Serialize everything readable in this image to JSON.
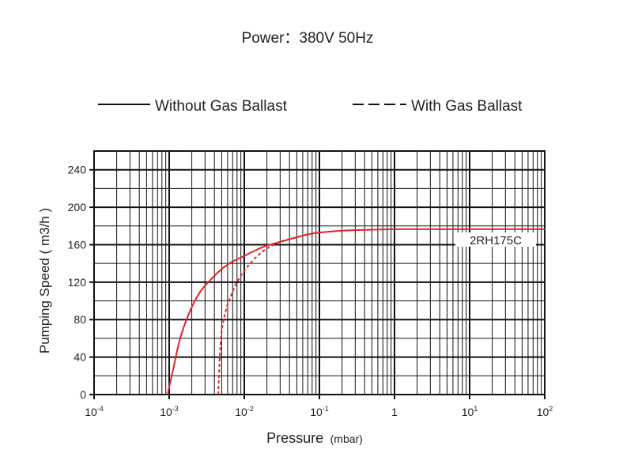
{
  "header": {
    "power_label": "Power：380V 50Hz"
  },
  "legend": {
    "solid_label": "Without Gas Ballast",
    "dashed_label": "With Gas Ballast"
  },
  "chart_data": {
    "type": "line",
    "title": "Power：380V 50Hz",
    "xlabel_main": "Pressure",
    "xlabel_unit": "(mbar)",
    "ylabel": "Pumping Speed ( m3/h )",
    "x_scale": "log",
    "xlim": [
      0.0001,
      100
    ],
    "ylim": [
      0,
      260
    ],
    "x_ticks": [
      {
        "value": 0.0001,
        "base": "10",
        "exp": "-4"
      },
      {
        "value": 0.001,
        "base": "10",
        "exp": "-3"
      },
      {
        "value": 0.01,
        "base": "10",
        "exp": "-2"
      },
      {
        "value": 0.1,
        "base": "10",
        "exp": "-1"
      },
      {
        "value": 1,
        "base": "1",
        "exp": ""
      },
      {
        "value": 10,
        "base": "10",
        "exp": "1"
      },
      {
        "value": 100,
        "base": "10",
        "exp": "2"
      }
    ],
    "y_ticks": [
      0,
      40,
      80,
      120,
      160,
      200,
      240
    ],
    "grid": true,
    "legend_position": "top",
    "curve_label": "2RH175C",
    "series": [
      {
        "name": "Without Gas Ballast",
        "style": "solid",
        "color": "#e0242c",
        "x": [
          0.00095,
          0.00115,
          0.0014,
          0.0018,
          0.0025,
          0.0035,
          0.005,
          0.007,
          0.01,
          0.015,
          0.02,
          0.03,
          0.05,
          0.07,
          0.1,
          0.2,
          0.5,
          1,
          2,
          5,
          10,
          100
        ],
        "y": [
          0,
          30,
          60,
          85,
          108,
          122,
          134,
          142,
          148,
          155,
          159,
          163,
          168,
          171,
          173,
          175,
          176,
          176.5,
          176.5,
          176.5,
          176.5,
          176.5
        ]
      },
      {
        "name": "With Gas Ballast",
        "style": "dashed",
        "color": "#e0242c",
        "x": [
          0.0045,
          0.0046,
          0.0048,
          0.005,
          0.0055,
          0.006,
          0.007,
          0.008,
          0.01,
          0.012,
          0.015,
          0.02,
          0.03,
          0.05,
          0.07
        ],
        "y": [
          0,
          20,
          50,
          68,
          85,
          96,
          110,
          120,
          132,
          140,
          148,
          156,
          163,
          168,
          171
        ]
      }
    ]
  }
}
